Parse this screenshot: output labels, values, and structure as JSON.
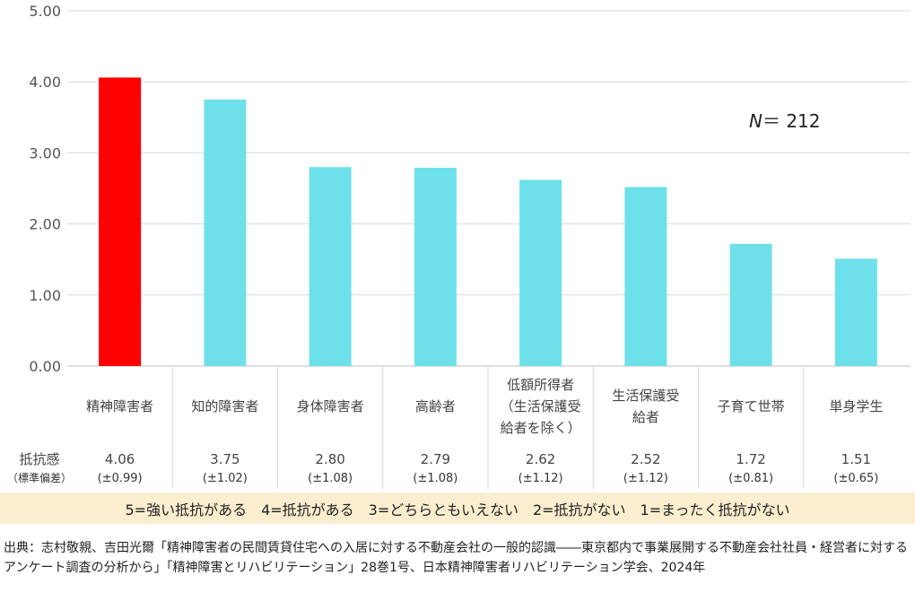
{
  "chart_data": {
    "type": "bar",
    "categories": [
      [
        "精神障害者"
      ],
      [
        "知的障害者"
      ],
      [
        "身体障害者"
      ],
      [
        "高齢者"
      ],
      [
        "低額所得者",
        "（生活保護受",
        "給者を除く）"
      ],
      [
        "生活保護受",
        "給者"
      ],
      [
        "子育て世帯"
      ],
      [
        "単身学生"
      ]
    ],
    "values": [
      4.06,
      3.75,
      2.8,
      2.79,
      2.62,
      2.52,
      1.72,
      1.51
    ],
    "value_labels": [
      "4.06",
      "3.75",
      "2.80",
      "2.79",
      "2.62",
      "2.52",
      "1.72",
      "1.51"
    ],
    "sd_labels": [
      "(±0.99)",
      "(±1.02)",
      "(±1.08)",
      "(±1.08)",
      "(±1.12)",
      "(±1.12)",
      "(±0.81)",
      "(±0.65)"
    ],
    "bar_colors": [
      "#ff0000",
      "#6ee0ea",
      "#6ee0ea",
      "#6ee0ea",
      "#6ee0ea",
      "#6ee0ea",
      "#6ee0ea",
      "#6ee0ea"
    ],
    "ylim": [
      0,
      5
    ],
    "yticks": [
      "0.00",
      "1.00",
      "2.00",
      "3.00",
      "4.00",
      "5.00"
    ],
    "grid": true,
    "annotation": {
      "italic": "N",
      "rest": "＝ 212"
    },
    "row_label": "抵抗感",
    "row_label_sub": "（標準偏差）"
  },
  "scale_legend": "5=強い抵抗がある　4=抵抗がある　3=どちらともいえない　2=抵抗がない　1=まったく抵抗がない",
  "source": "出典：志村敬親、吉田光爾「精神障害者の民間賃貸住宅への入居に対する不動産会社の一般的認識――東京都内で事業展開する不動産会社社員・経営者に対するアンケート調査の分析から」「精神障害とリハビリテーション」28巻1号、日本精神障害者リハビリテーション学会、2024年",
  "colors": {
    "highlight": "#ff0000",
    "bar": "#6ee0ea",
    "legend_bg": "#fbeecf",
    "grid": "#d9d9d9"
  }
}
